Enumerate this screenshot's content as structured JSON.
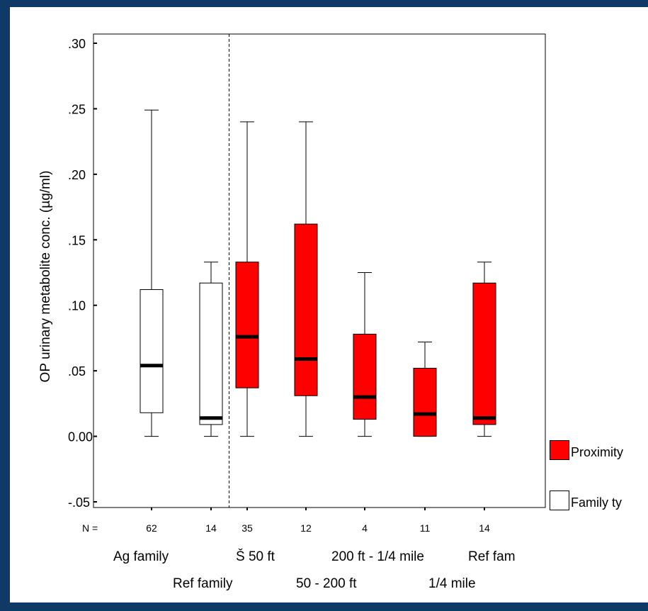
{
  "colors": {
    "frame": "#0f3a68",
    "proximity": "#ff0000",
    "family": "#ffffff"
  },
  "chart_data": {
    "type": "box",
    "ylabel": "OP urinary metabolite conc. (µg/ml)",
    "ylim": [
      -0.05,
      0.3
    ],
    "y_tick_labels": [
      ".30",
      ".25",
      ".20",
      ".15",
      ".10",
      ".05",
      "0.00",
      "-.05"
    ],
    "y_tick_values": [
      0.3,
      0.25,
      0.2,
      0.15,
      0.1,
      0.05,
      0.0,
      -0.05
    ],
    "n_prefix": "N =",
    "groups": [
      {
        "category": "Ag family",
        "n": "62",
        "fill": "family",
        "min": 0.0,
        "q1": 0.018,
        "median": 0.054,
        "q3": 0.112,
        "max": 0.249
      },
      {
        "category": "Ref family",
        "n": "14",
        "fill": "family",
        "min": 0.0,
        "q1": 0.009,
        "median": 0.014,
        "q3": 0.117,
        "max": 0.133
      },
      {
        "category": "Š 50 ft",
        "n": "35",
        "fill": "proximity",
        "min": 0.0,
        "q1": 0.037,
        "median": 0.076,
        "q3": 0.133,
        "max": 0.24
      },
      {
        "category": "50 - 200 ft",
        "n": "12",
        "fill": "proximity",
        "min": 0.0,
        "q1": 0.031,
        "median": 0.059,
        "q3": 0.162,
        "max": 0.24
      },
      {
        "category": "200 ft - 1/4 mile",
        "n": "4",
        "fill": "proximity",
        "min": 0.0,
        "q1": 0.013,
        "median": 0.03,
        "q3": 0.078,
        "max": 0.125
      },
      {
        "category": "1/4 mile",
        "n": "11",
        "fill": "proximity",
        "min": 0.0,
        "q1": 0.0,
        "median": 0.017,
        "q3": 0.052,
        "max": 0.072
      },
      {
        "category": "Ref fam",
        "n": "14",
        "fill": "proximity",
        "min": 0.0,
        "q1": 0.009,
        "median": 0.014,
        "q3": 0.117,
        "max": 0.133
      }
    ],
    "category_label_rows": [
      [
        "Ag family",
        "Š 50 ft",
        "200 ft - 1/4 mile",
        "Ref fam"
      ],
      [
        "Ref family",
        "50 - 200 ft",
        "1/4 mile"
      ]
    ],
    "divider_after_group": 1,
    "legend": [
      {
        "label": "Proximity",
        "fill": "proximity"
      },
      {
        "label": "Family ty",
        "fill": "family"
      }
    ]
  }
}
